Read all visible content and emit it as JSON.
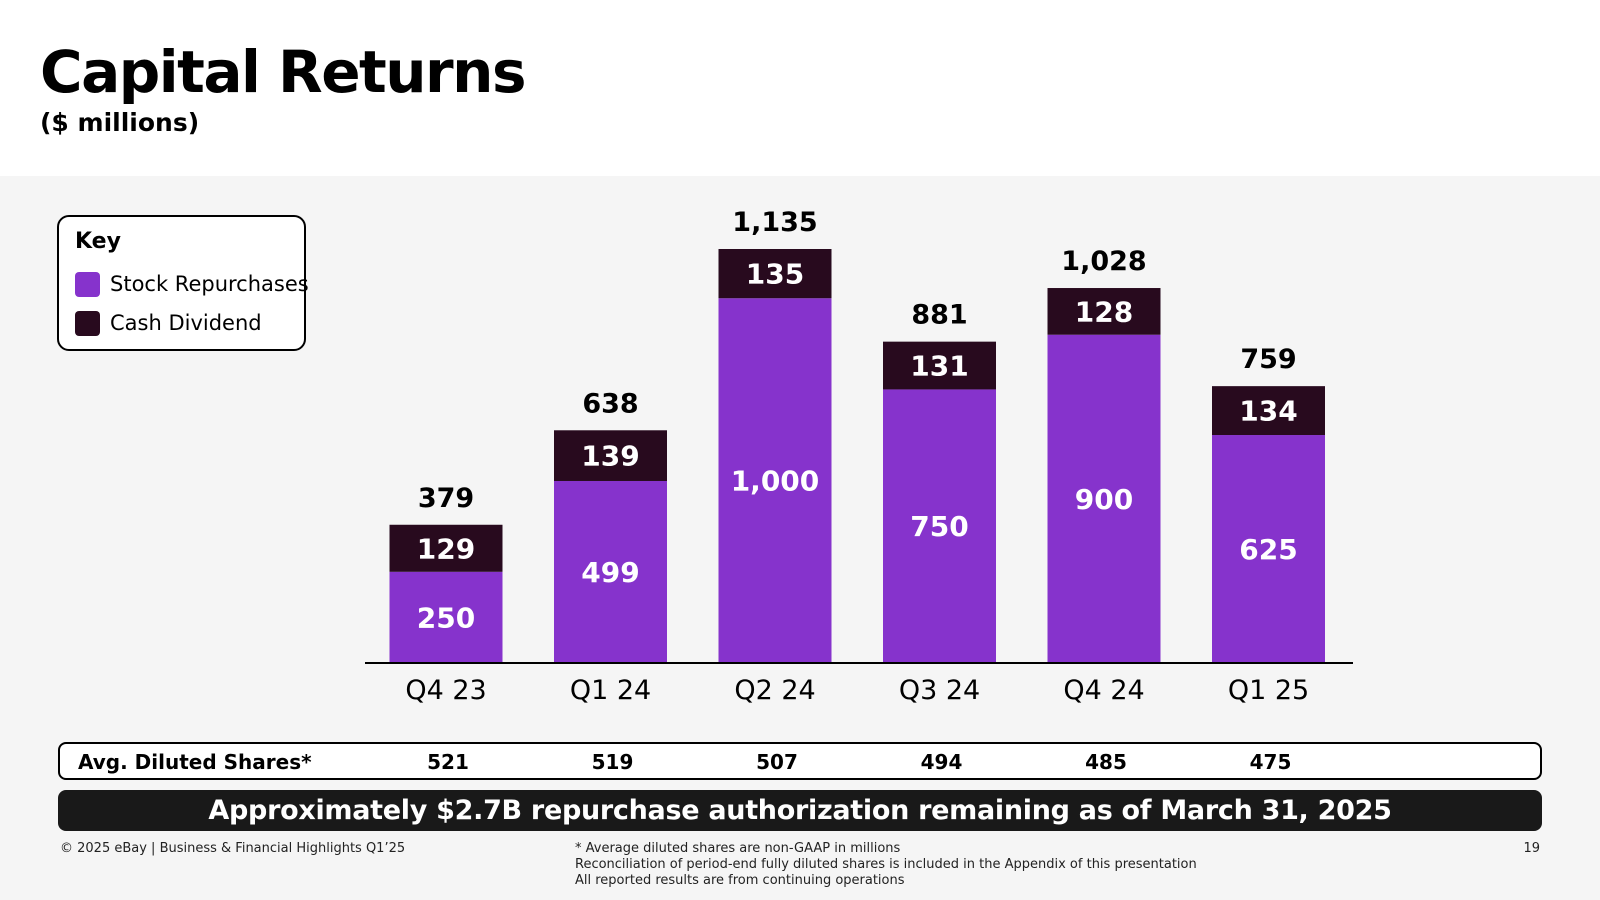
{
  "header": {
    "title": "Capital Returns",
    "subtitle": "($ millions)"
  },
  "legend": {
    "title": "Key",
    "items": [
      {
        "label": "Stock Repurchases",
        "color": "#8633cc"
      },
      {
        "label": "Cash Dividend",
        "color": "#280a1e"
      }
    ]
  },
  "chart_data": {
    "type": "bar",
    "stacked": true,
    "categories": [
      "Q4 23",
      "Q1 24",
      "Q2 24",
      "Q3 24",
      "Q4 24",
      "Q1 25"
    ],
    "series": [
      {
        "name": "Stock Repurchases",
        "color": "#8633cc",
        "values": [
          250,
          499,
          1000,
          750,
          900,
          625
        ]
      },
      {
        "name": "Cash Dividend",
        "color": "#280a1e",
        "values": [
          129,
          139,
          135,
          131,
          128,
          134
        ]
      }
    ],
    "total_labels": [
      "379",
      "638",
      "1,135",
      "881",
      "1,028",
      "759"
    ],
    "segment_labels": [
      [
        "250",
        "499",
        "1,000",
        "750",
        "900",
        "625"
      ],
      [
        "129",
        "139",
        "135",
        "131",
        "128",
        "134"
      ]
    ],
    "title": "",
    "xlabel": "",
    "ylabel": "",
    "ylim": [
      0,
      1135
    ],
    "grid": false,
    "legend_position": "top-left"
  },
  "shares_row": {
    "label": "Avg. Diluted Shares*",
    "values": [
      "521",
      "519",
      "507",
      "494",
      "485",
      "475"
    ]
  },
  "banner": {
    "text": "Approximately $2.7B repurchase authorization remaining as of March 31, 2025"
  },
  "footer": {
    "copyright": "© 2025 eBay | Business & Financial Highlights Q1’25",
    "notes": [
      "* Average diluted shares are non-GAAP in millions",
      "Reconciliation of period-end fully diluted shares is included in the Appendix of this presentation",
      "All reported results are from continuing operations"
    ],
    "page_number": "19"
  }
}
